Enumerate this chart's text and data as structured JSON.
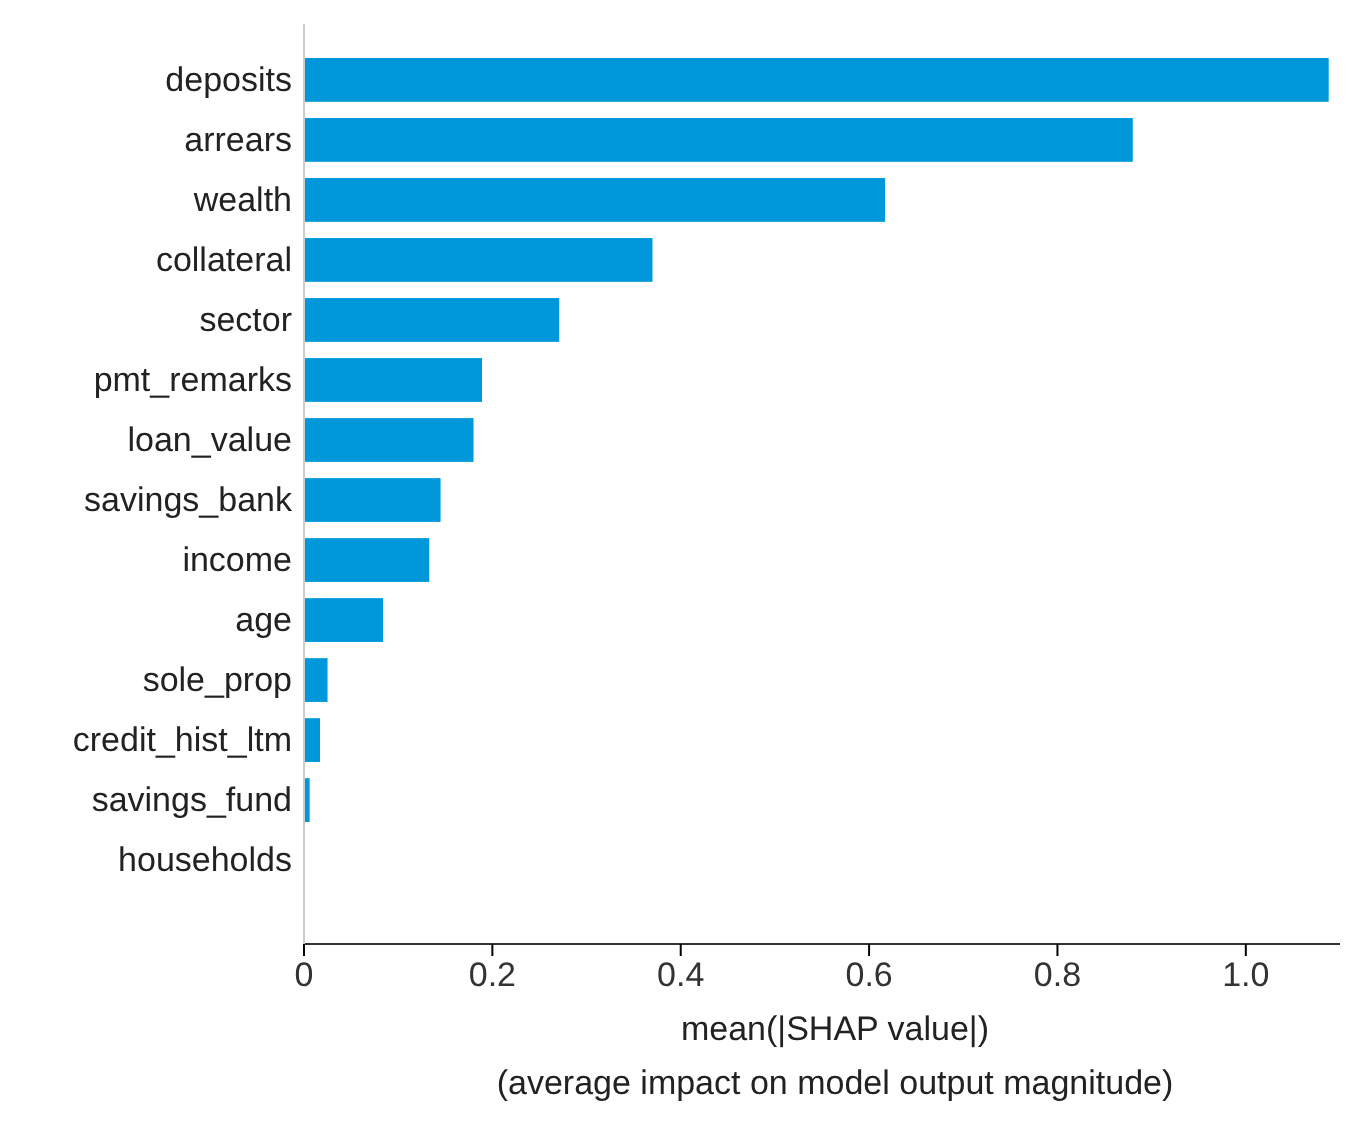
{
  "chart_data": {
    "type": "bar",
    "orientation": "horizontal",
    "xlabel": "mean(|SHAP value|)\n(average impact on model output magnitude)",
    "categories": [
      "deposits",
      "arrears",
      "wealth",
      "collateral",
      "sector",
      "pmt_remarks",
      "loan_value",
      "savings_bank",
      "income",
      "age",
      "sole_prop",
      "credit_hist_ltm",
      "savings_fund",
      "households"
    ],
    "values": [
      1.088,
      0.88,
      0.617,
      0.37,
      0.271,
      0.189,
      0.18,
      0.145,
      0.133,
      0.084,
      0.025,
      0.017,
      0.006,
      0
    ],
    "color": "#0098da",
    "xlim": [
      0,
      1.1
    ],
    "xticks": [
      0,
      {
        "value": 0.2,
        "label": "0.2"
      },
      {
        "value": 0.4,
        "label": "0.4"
      },
      {
        "value": 0.6,
        "label": "0.6"
      },
      {
        "value": 0.8,
        "label": "0.8"
      },
      {
        "value": 1.0,
        "label": "1.0"
      }
    ]
  }
}
